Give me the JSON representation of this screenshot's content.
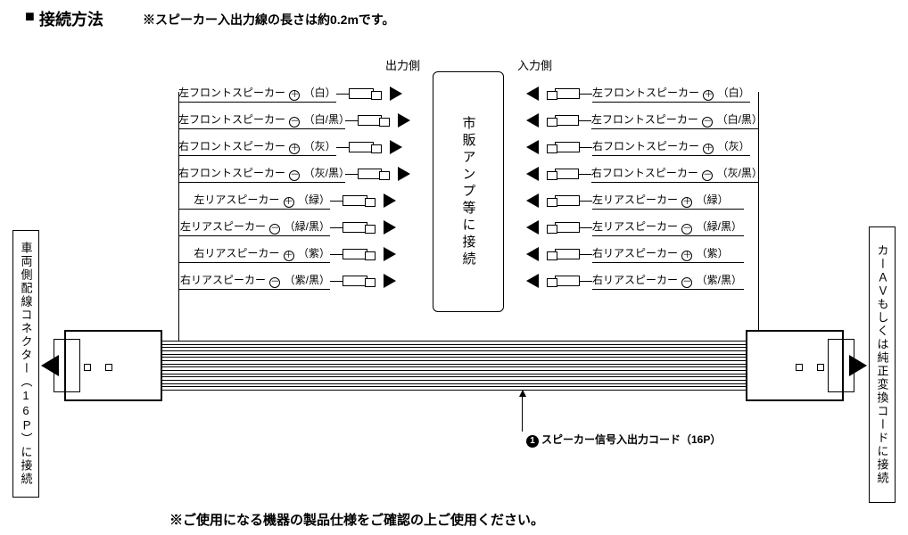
{
  "title": "接続方法",
  "title_note": "※スピーカー入出力線の長さは約0.2mです。",
  "left_box": "車両側配線コネクター（16Ｐ）に接続",
  "right_box": "カーＡＶもしくは純正変換コードに接続",
  "center_box": "市販アンプ等に接続",
  "section_out": "出力側",
  "section_in": "入力側",
  "callout": "スピーカー信号入出力コード（16P）",
  "bottom_note": "※ご使用になる機器の製品仕様をご確認の上ご使用ください。",
  "wires": [
    {
      "name": "左フロントスピーカー",
      "pol": "+",
      "color": "（白）"
    },
    {
      "name": "左フロントスピーカー",
      "pol": "-",
      "color": "（白/黒）"
    },
    {
      "name": "右フロントスピーカー",
      "pol": "+",
      "color": "（灰）"
    },
    {
      "name": "右フロントスピーカー",
      "pol": "-",
      "color": "（灰/黒）"
    },
    {
      "name": "左リアスピーカー",
      "pol": "+",
      "color": "（緑）"
    },
    {
      "name": "左リアスピーカー",
      "pol": "-",
      "color": "（緑/黒）"
    },
    {
      "name": "右リアスピーカー",
      "pol": "+",
      "color": "（紫）"
    },
    {
      "name": "右リアスピーカー",
      "pol": "-",
      "color": "（紫/黒）"
    }
  ],
  "ribbon_strands": 16,
  "diagram_colors": {
    "line": "#000000",
    "bg": "#ffffff"
  }
}
